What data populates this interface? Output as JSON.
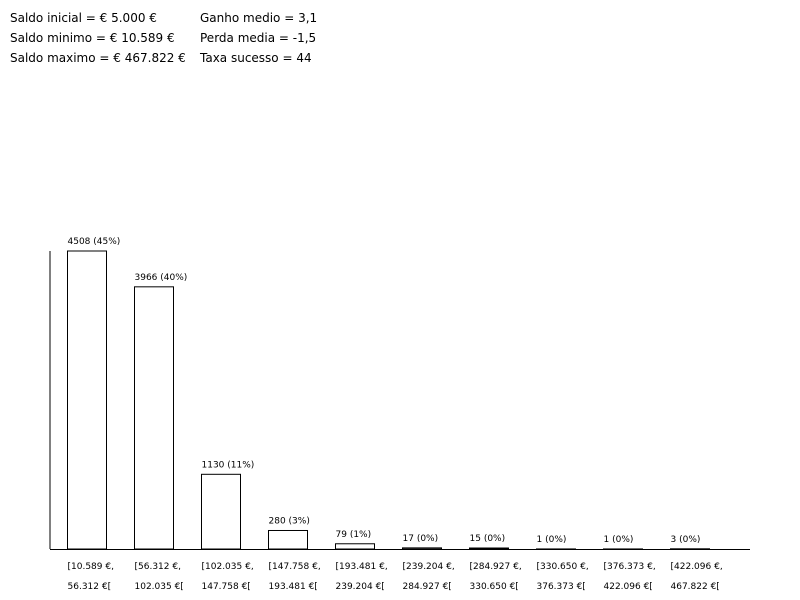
{
  "stats": {
    "left": [
      "Saldo inicial = € 5.000 €",
      "Saldo minimo = € 10.589 €",
      "Saldo maximo = € 467.822 €"
    ],
    "right": [
      "Ganho medio = 3,1",
      "Perda media = -1,5",
      "Taxa sucesso = 44"
    ]
  },
  "chart_data": {
    "type": "bar",
    "title": "",
    "xlabel": "",
    "ylabel": "",
    "ylim": [
      0,
      4508
    ],
    "grid": false,
    "categories": [
      [
        "[10.589 €,",
        "56.312 €["
      ],
      [
        "[56.312 €,",
        "102.035 €["
      ],
      [
        "[102.035 €,",
        "147.758 €["
      ],
      [
        "[147.758 €,",
        "193.481 €["
      ],
      [
        "[193.481 €,",
        "239.204 €["
      ],
      [
        "[239.204 €,",
        "284.927 €["
      ],
      [
        "[284.927 €,",
        "330.650 €["
      ],
      [
        "[330.650 €,",
        "376.373 €["
      ],
      [
        "[376.373 €,",
        "422.096 €["
      ],
      [
        "[422.096 €,",
        "467.822 €["
      ]
    ],
    "values": [
      4508,
      3966,
      1130,
      280,
      79,
      17,
      15,
      1,
      1,
      3
    ],
    "labels": [
      "4508 (45%)",
      "3966 (40%)",
      "1130 (11%)",
      "280 (3%)",
      "79 (1%)",
      "17 (0%)",
      "15 (0%)",
      "1 (0%)",
      "1 (0%)",
      "3 (0%)"
    ]
  }
}
